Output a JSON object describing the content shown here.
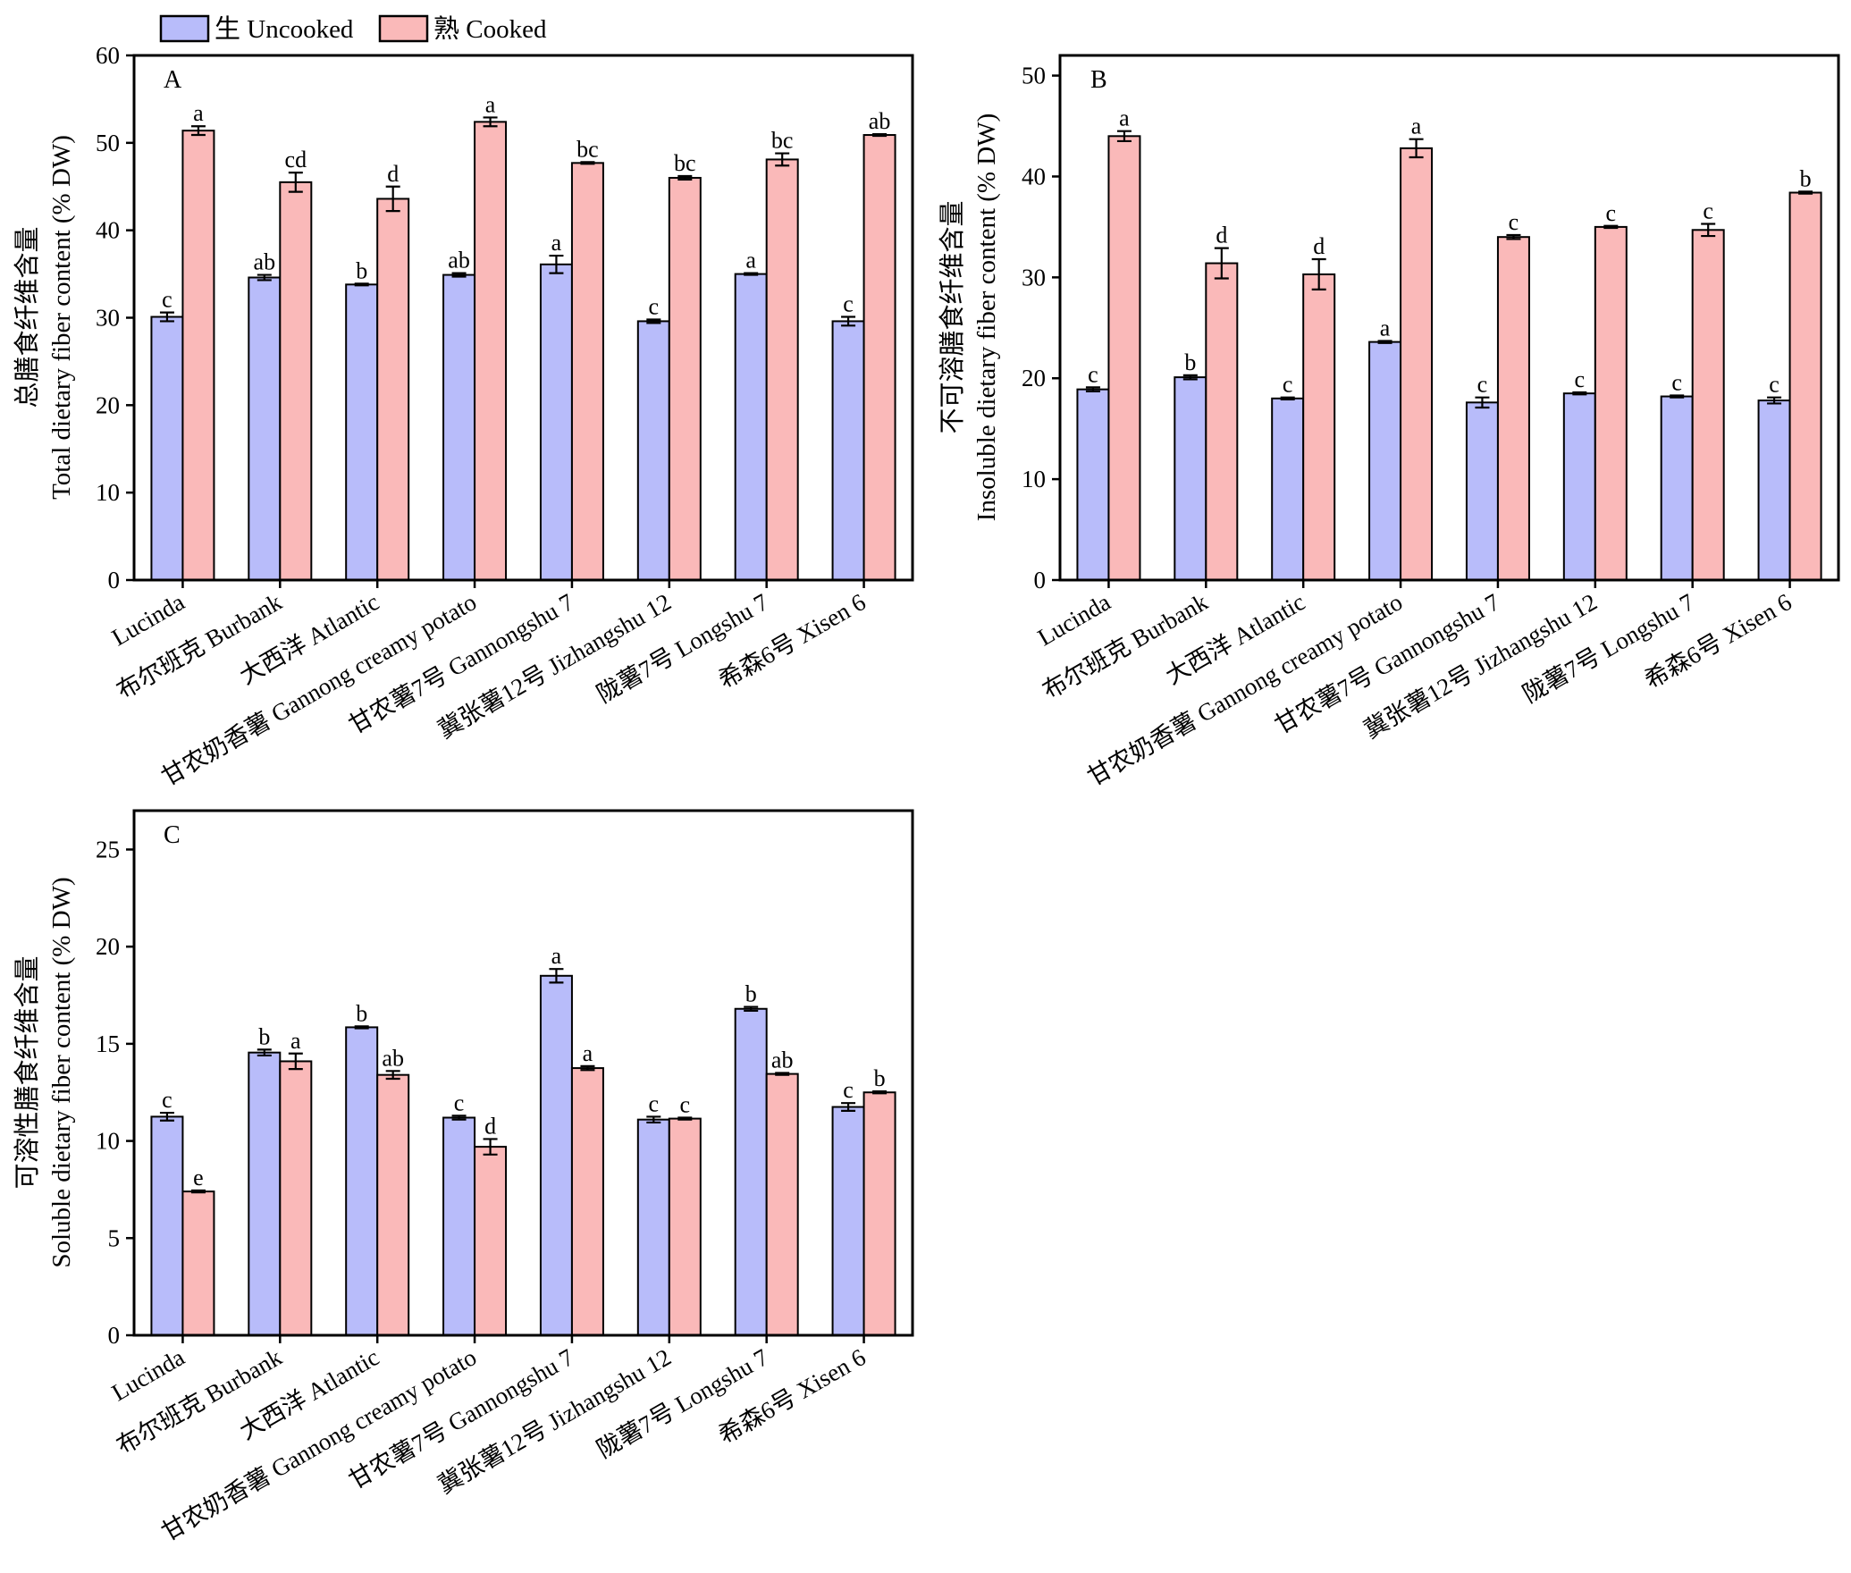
{
  "legend": {
    "uncooked_label": "生 Uncooked",
    "cooked_label": "熟 Cooked",
    "uncooked_color": "#b8bcfa",
    "cooked_color": "#fab9b9"
  },
  "varieties": [
    "Lucinda",
    "布尔班克 Burbank",
    "大西洋 Atlantic",
    "甘农奶香薯 Gannong creamy potato",
    "甘农薯7号 Gannongshu 7",
    "冀张薯12号 Jizhangshu 12",
    "陇薯7号 Longshu 7",
    "希森6号 Xisen 6"
  ],
  "chart_data": [
    {
      "type": "bar",
      "panel": "A",
      "ylabel_cn": "总膳食纤维含量",
      "ylabel_en": "Total dietary fiber content (% DW)",
      "ylim": [
        0,
        60
      ],
      "yticks": [
        0,
        10,
        20,
        30,
        40,
        50,
        60
      ],
      "series": [
        {
          "name": "生 Uncooked",
          "values": [
            30.1,
            34.6,
            33.8,
            34.9,
            36.1,
            29.6,
            35.0,
            29.6
          ],
          "errors": [
            0.5,
            0.3,
            0.1,
            0.2,
            1.0,
            0.2,
            0.1,
            0.5
          ],
          "letters": [
            "c",
            "ab",
            "b",
            "ab",
            "a",
            "c",
            "a",
            "c"
          ]
        },
        {
          "name": "熟 Cooked",
          "values": [
            51.4,
            45.5,
            43.6,
            52.4,
            47.7,
            46.0,
            48.1,
            50.9
          ],
          "errors": [
            0.5,
            1.1,
            1.4,
            0.5,
            0.1,
            0.2,
            0.7,
            0.1
          ],
          "letters": [
            "a",
            "cd",
            "d",
            "a",
            "bc",
            "bc",
            "bc",
            "ab"
          ]
        }
      ]
    },
    {
      "type": "bar",
      "panel": "B",
      "ylabel_cn": "不可溶膳食纤维含量",
      "ylabel_en": "Insoluble dietary fiber content (% DW)",
      "ylim": [
        0,
        52
      ],
      "yticks": [
        0,
        10,
        20,
        30,
        40,
        50
      ],
      "series": [
        {
          "name": "生 Uncooked",
          "values": [
            18.9,
            20.1,
            18.0,
            23.6,
            17.6,
            18.5,
            18.2,
            17.8
          ],
          "errors": [
            0.2,
            0.2,
            0.1,
            0.1,
            0.5,
            0.1,
            0.1,
            0.3
          ],
          "letters": [
            "c",
            "b",
            "c",
            "a",
            "c",
            "c",
            "c",
            "c"
          ]
        },
        {
          "name": "熟 Cooked",
          "values": [
            44.0,
            31.4,
            30.3,
            42.8,
            34.0,
            35.0,
            34.7,
            38.4
          ],
          "errors": [
            0.5,
            1.5,
            1.5,
            0.9,
            0.2,
            0.1,
            0.6,
            0.1
          ],
          "letters": [
            "a",
            "d",
            "d",
            "a",
            "c",
            "c",
            "c",
            "b"
          ]
        }
      ]
    },
    {
      "type": "bar",
      "panel": "C",
      "ylabel_cn": "可溶性膳食纤维含量",
      "ylabel_en": "Soluble dietary fiber content (% DW)",
      "ylim": [
        0,
        27
      ],
      "yticks": [
        0,
        5,
        10,
        15,
        20,
        25
      ],
      "series": [
        {
          "name": "生 Uncooked",
          "values": [
            11.25,
            14.55,
            15.85,
            11.2,
            18.5,
            11.1,
            16.8,
            11.75
          ],
          "errors": [
            0.2,
            0.15,
            0.05,
            0.1,
            0.35,
            0.15,
            0.1,
            0.2
          ],
          "letters": [
            "c",
            "b",
            "b",
            "c",
            "a",
            "c",
            "b",
            "c"
          ]
        },
        {
          "name": "熟 Cooked",
          "values": [
            7.4,
            14.1,
            13.4,
            9.7,
            13.75,
            11.15,
            13.45,
            12.5
          ],
          "errors": [
            0.05,
            0.4,
            0.2,
            0.4,
            0.1,
            0.05,
            0.05,
            0.05
          ],
          "letters": [
            "e",
            "a",
            "ab",
            "d",
            "a",
            "c",
            "ab",
            "b"
          ]
        }
      ]
    }
  ]
}
